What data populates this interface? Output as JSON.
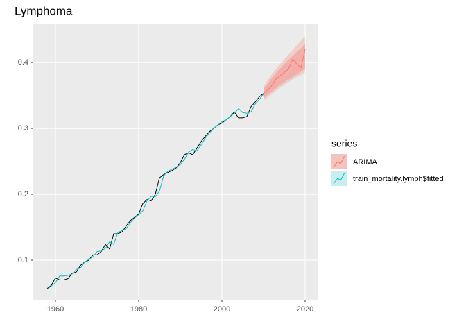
{
  "chart_data": {
    "type": "line",
    "title": "Lymphoma",
    "xlim": [
      1954.5,
      2023
    ],
    "ylim": [
      0.04,
      0.458
    ],
    "xticks": [
      1960,
      1980,
      2000,
      2020
    ],
    "yticks": [
      0.1,
      0.2,
      0.3,
      0.4
    ],
    "grid": true,
    "legend_title": "series",
    "legend_position": "right",
    "series": [
      {
        "color": "#000000",
        "x": [
          1958,
          1959,
          1960,
          1961,
          1962,
          1963,
          1964,
          1965,
          1966,
          1967,
          1968,
          1969,
          1970,
          1971,
          1972,
          1973,
          1974,
          1975,
          1976,
          1977,
          1978,
          1979,
          1980,
          1981,
          1982,
          1983,
          1984,
          1985,
          1986,
          1987,
          1988,
          1989,
          1990,
          1991,
          1992,
          1993,
          1994,
          1995,
          1996,
          1997,
          1998,
          1999,
          2000,
          2001,
          2002,
          2003,
          2004,
          2005,
          2006,
          2007,
          2008,
          2009,
          2010
        ],
        "values": [
          0.057,
          0.062,
          0.073,
          0.07,
          0.07,
          0.072,
          0.08,
          0.082,
          0.092,
          0.097,
          0.1,
          0.108,
          0.108,
          0.113,
          0.124,
          0.117,
          0.14,
          0.14,
          0.143,
          0.152,
          0.16,
          0.165,
          0.17,
          0.186,
          0.192,
          0.19,
          0.2,
          0.225,
          0.23,
          0.233,
          0.236,
          0.24,
          0.248,
          0.26,
          0.263,
          0.26,
          0.27,
          0.28,
          0.288,
          0.295,
          0.3,
          0.305,
          0.308,
          0.313,
          0.318,
          0.325,
          0.316,
          0.316,
          0.318,
          0.333,
          0.34,
          0.348,
          0.353
        ]
      },
      {
        "name": "train_mortality.lymph$fitted",
        "color": "#00BFC4",
        "band_color": "#c9eef0",
        "x": [
          1958,
          1959,
          1960,
          1961,
          1962,
          1963,
          1964,
          1965,
          1966,
          1967,
          1968,
          1969,
          1970,
          1971,
          1972,
          1973,
          1974,
          1975,
          1976,
          1977,
          1978,
          1979,
          1980,
          1981,
          1982,
          1983,
          1984,
          1985,
          1986,
          1987,
          1988,
          1989,
          1990,
          1991,
          1992,
          1993,
          1994,
          1995,
          1996,
          1997,
          1998,
          1999,
          2000,
          2001,
          2002,
          2003,
          2004,
          2005,
          2006,
          2007,
          2008,
          2009,
          2010
        ],
        "values": [
          0.056,
          0.061,
          0.066,
          0.076,
          0.076,
          0.077,
          0.079,
          0.086,
          0.088,
          0.097,
          0.101,
          0.105,
          0.113,
          0.114,
          0.118,
          0.128,
          0.124,
          0.142,
          0.145,
          0.148,
          0.157,
          0.164,
          0.169,
          0.175,
          0.19,
          0.197,
          0.196,
          0.205,
          0.228,
          0.235,
          0.238,
          0.241,
          0.245,
          0.253,
          0.264,
          0.268,
          0.266,
          0.275,
          0.285,
          0.293,
          0.3,
          0.305,
          0.31,
          0.313,
          0.318,
          0.323,
          0.33,
          0.324,
          0.323,
          0.325,
          0.337,
          0.344,
          0.352
        ]
      },
      {
        "name": "ARIMA",
        "color": "#F8766D",
        "band_color": "#f4c3bd",
        "x": [
          2010,
          2011,
          2012,
          2013,
          2014,
          2015,
          2016,
          2017,
          2018,
          2019,
          2020
        ],
        "values": [
          0.353,
          0.358,
          0.365,
          0.375,
          0.38,
          0.385,
          0.39,
          0.405,
          0.398,
          0.392,
          0.42
        ],
        "lower_95": [
          0.342,
          0.347,
          0.352,
          0.357,
          0.362,
          0.366,
          0.37,
          0.374,
          0.378,
          0.381,
          0.385
        ],
        "upper_95": [
          0.364,
          0.373,
          0.382,
          0.39,
          0.398,
          0.405,
          0.412,
          0.419,
          0.426,
          0.433,
          0.44
        ],
        "lower_80": [
          0.346,
          0.351,
          0.356,
          0.361,
          0.366,
          0.37,
          0.374,
          0.378,
          0.382,
          0.386,
          0.39
        ],
        "upper_80": [
          0.36,
          0.368,
          0.376,
          0.384,
          0.391,
          0.398,
          0.404,
          0.41,
          0.416,
          0.422,
          0.428
        ]
      }
    ]
  }
}
